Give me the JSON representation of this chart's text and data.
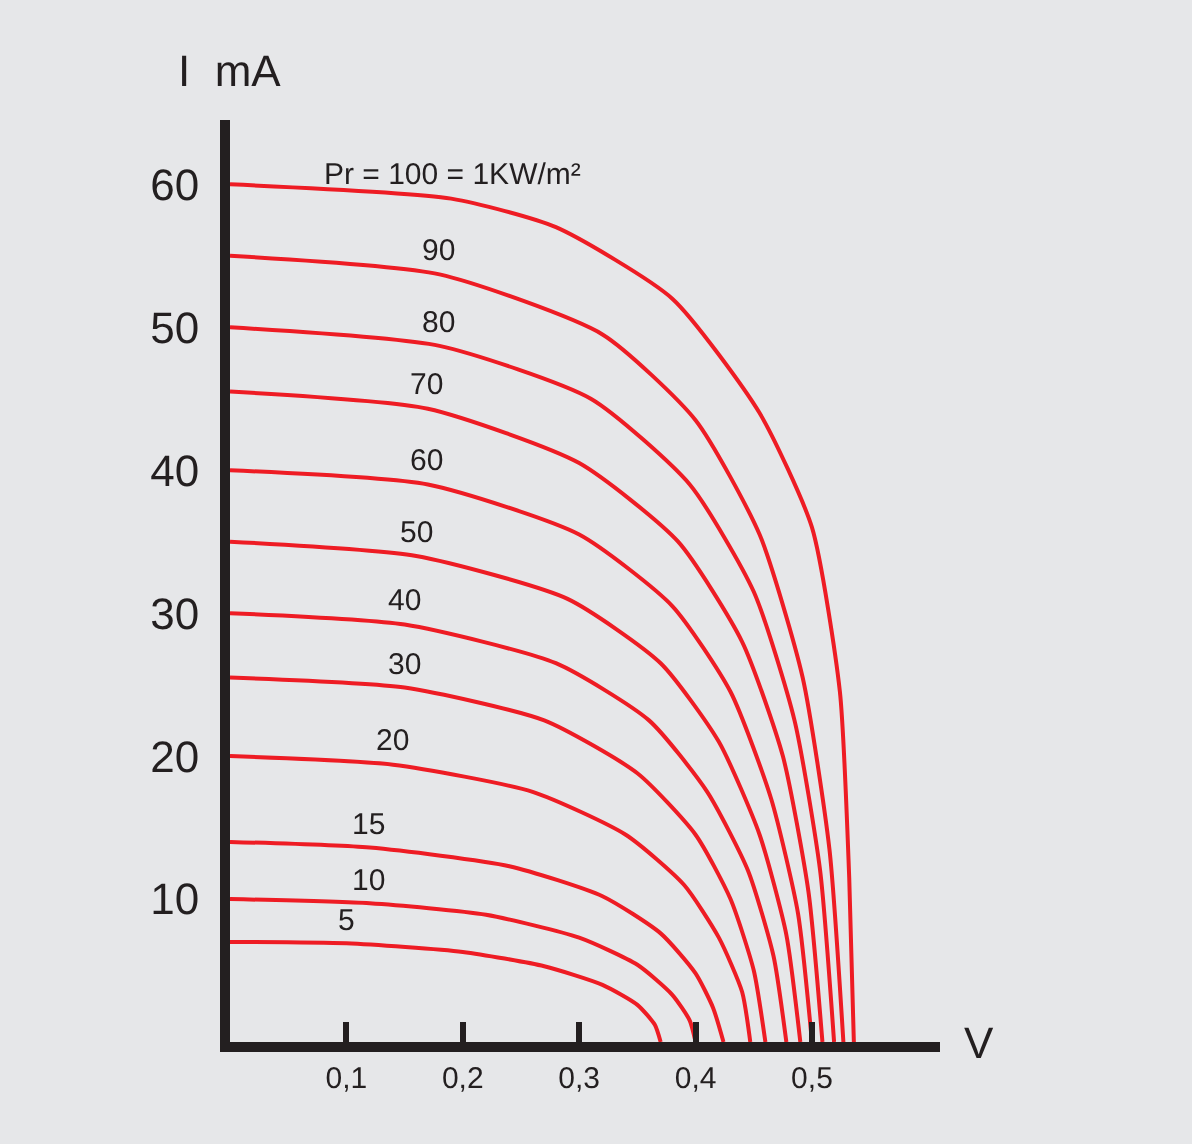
{
  "chart_data": {
    "type": "line",
    "xlabel": "V",
    "ylabel": "I  mA",
    "xlim": [
      0,
      0.61
    ],
    "ylim": [
      0,
      64.5
    ],
    "xticks": [
      {
        "value": 0.1,
        "label": "0,1"
      },
      {
        "value": 0.2,
        "label": "0,2"
      },
      {
        "value": 0.3,
        "label": "0,3"
      },
      {
        "value": 0.4,
        "label": "0,4"
      },
      {
        "value": 0.5,
        "label": "0,5"
      }
    ],
    "yticks": [
      10,
      20,
      30,
      40,
      50,
      60
    ],
    "grid": false,
    "legend": false,
    "marker": "none",
    "line_style": "solid",
    "series": [
      {
        "name": "Pr = 100 = 1KW/m²",
        "color": "#ee1c24",
        "x": [
          0,
          0.19,
          0.28,
          0.38,
          0.455,
          0.5,
          0.524,
          0.532,
          0.536
        ],
        "values": [
          60,
          59,
          57,
          52,
          44,
          36,
          24.5,
          11.5,
          0
        ]
      },
      {
        "name": "90",
        "color": "#ee1c24",
        "x": [
          0,
          0.18,
          0.32,
          0.4,
          0.455,
          0.492,
          0.515,
          0.527
        ],
        "values": [
          55,
          53.7,
          49.5,
          43.5,
          35.5,
          25.5,
          13.5,
          0
        ]
      },
      {
        "name": "80",
        "color": "#ee1c24",
        "x": [
          0,
          0.18,
          0.31,
          0.395,
          0.45,
          0.485,
          0.507,
          0.519
        ],
        "values": [
          50,
          48.7,
          45,
          39,
          31.5,
          22.5,
          12,
          0
        ]
      },
      {
        "name": "70",
        "color": "#ee1c24",
        "x": [
          0,
          0.17,
          0.3,
          0.385,
          0.44,
          0.475,
          0.497,
          0.509
        ],
        "values": [
          45.5,
          44.3,
          40.5,
          35,
          28,
          20,
          10.5,
          0
        ]
      },
      {
        "name": "60",
        "color": "#ee1c24",
        "x": [
          0,
          0.17,
          0.3,
          0.38,
          0.43,
          0.465,
          0.488,
          0.5
        ],
        "values": [
          40,
          39,
          35.5,
          30.5,
          24.5,
          17,
          9,
          0
        ]
      },
      {
        "name": "50",
        "color": "#ee1c24",
        "x": [
          0,
          0.16,
          0.29,
          0.37,
          0.42,
          0.455,
          0.478,
          0.49
        ],
        "values": [
          35,
          34,
          31,
          26.5,
          21,
          14.5,
          7.5,
          0
        ]
      },
      {
        "name": "40",
        "color": "#ee1c24",
        "x": [
          0,
          0.15,
          0.28,
          0.36,
          0.41,
          0.445,
          0.467,
          0.478
        ],
        "values": [
          30,
          29.2,
          26.5,
          22.5,
          17.5,
          12,
          6,
          0
        ]
      },
      {
        "name": "30",
        "color": "#ee1c24",
        "x": [
          0,
          0.15,
          0.27,
          0.35,
          0.4,
          0.43,
          0.45,
          0.46
        ],
        "values": [
          25.5,
          24.8,
          22.5,
          18.8,
          14.5,
          10,
          5,
          0
        ]
      },
      {
        "name": "20",
        "color": "#ee1c24",
        "x": [
          0,
          0.14,
          0.26,
          0.34,
          0.39,
          0.42,
          0.44,
          0.447
        ],
        "values": [
          20,
          19.4,
          17.5,
          14.5,
          11,
          7.3,
          3.5,
          0
        ]
      },
      {
        "name": "15",
        "color": "#ee1c24",
        "x": [
          0,
          0.12,
          0.24,
          0.32,
          0.37,
          0.4,
          0.415,
          0.424
        ],
        "values": [
          14,
          13.6,
          12.3,
          10.2,
          7.6,
          4.8,
          2.4,
          0
        ]
      },
      {
        "name": "10",
        "color": "#ee1c24",
        "x": [
          0,
          0.12,
          0.22,
          0.3,
          0.35,
          0.38,
          0.395,
          0.4
        ],
        "values": [
          10,
          9.7,
          8.9,
          7.3,
          5.4,
          3.3,
          1.5,
          0
        ]
      },
      {
        "name": "5",
        "color": "#ee1c24",
        "x": [
          0,
          0.1,
          0.2,
          0.27,
          0.32,
          0.35,
          0.365,
          0.37
        ],
        "values": [
          7,
          6.9,
          6.3,
          5.3,
          4,
          2.6,
          1.2,
          0
        ]
      }
    ]
  }
}
